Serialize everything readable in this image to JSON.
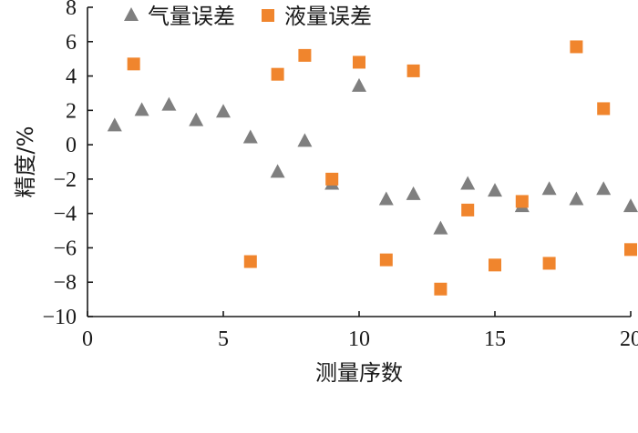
{
  "chart_data": {
    "type": "scatter",
    "xlabel": "测量序数",
    "ylabel": "精度/%",
    "xlim": [
      0,
      20
    ],
    "ylim": [
      -10,
      8
    ],
    "x_ticks": [
      "0",
      "5",
      "10",
      "15",
      "20"
    ],
    "y_ticks": [
      "−10",
      "−8",
      "−6",
      "−4",
      "−2",
      "0",
      "2",
      "4",
      "6",
      "8"
    ],
    "grid": false,
    "legend_position": "top-left",
    "series": [
      {
        "name": "气量误差",
        "marker": "triangle",
        "color": "#7f7f7f",
        "points": [
          {
            "x": 1,
            "y": 1.1
          },
          {
            "x": 2,
            "y": 2.0
          },
          {
            "x": 3,
            "y": 2.3
          },
          {
            "x": 4,
            "y": 1.4
          },
          {
            "x": 5,
            "y": 1.9
          },
          {
            "x": 6,
            "y": 0.4
          },
          {
            "x": 7,
            "y": -1.6
          },
          {
            "x": 8,
            "y": 0.2
          },
          {
            "x": 9,
            "y": -2.3
          },
          {
            "x": 10,
            "y": 3.4
          },
          {
            "x": 11,
            "y": -3.2
          },
          {
            "x": 12,
            "y": -2.9
          },
          {
            "x": 13,
            "y": -4.9
          },
          {
            "x": 14,
            "y": -2.3
          },
          {
            "x": 15,
            "y": -2.7
          },
          {
            "x": 16,
            "y": -3.6
          },
          {
            "x": 17,
            "y": -2.6
          },
          {
            "x": 18,
            "y": -3.2
          },
          {
            "x": 19,
            "y": -2.6
          },
          {
            "x": 20,
            "y": -3.6
          }
        ]
      },
      {
        "name": "液量误差",
        "marker": "square",
        "color": "#f0852d",
        "points": [
          {
            "x": 1.7,
            "y": 4.7
          },
          {
            "x": 6,
            "y": -6.8
          },
          {
            "x": 7,
            "y": 4.1
          },
          {
            "x": 8,
            "y": 5.2
          },
          {
            "x": 9,
            "y": -2.0
          },
          {
            "x": 10,
            "y": 4.8
          },
          {
            "x": 11,
            "y": -6.7
          },
          {
            "x": 12,
            "y": 4.3
          },
          {
            "x": 13,
            "y": -8.4
          },
          {
            "x": 14,
            "y": -3.8
          },
          {
            "x": 15,
            "y": -7.0
          },
          {
            "x": 16,
            "y": -3.3
          },
          {
            "x": 17,
            "y": -6.9
          },
          {
            "x": 18,
            "y": 5.7
          },
          {
            "x": 19,
            "y": 2.1
          },
          {
            "x": 20,
            "y": -6.1
          }
        ]
      }
    ]
  }
}
